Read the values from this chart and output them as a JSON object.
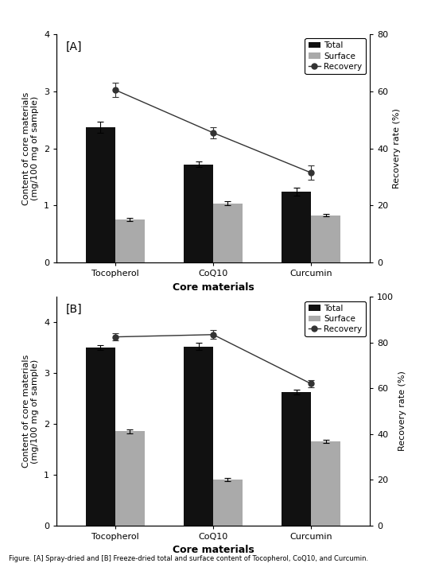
{
  "panel_A": {
    "label": "[A]",
    "categories": [
      "Tocopherol",
      "CoQ10",
      "Curcumin"
    ],
    "total": [
      2.37,
      1.72,
      1.25
    ],
    "total_err": [
      0.1,
      0.05,
      0.07
    ],
    "surface": [
      0.76,
      1.04,
      0.83
    ],
    "surface_err": [
      0.03,
      0.04,
      0.02
    ],
    "recovery": [
      60.5,
      45.5,
      31.5
    ],
    "recovery_err": [
      2.5,
      2.0,
      2.5
    ],
    "ylim_left": [
      0,
      4
    ],
    "ylim_right": [
      0,
      80
    ],
    "yticks_left": [
      0,
      1,
      2,
      3,
      4
    ],
    "yticks_right": [
      0,
      20,
      40,
      60,
      80
    ]
  },
  "panel_B": {
    "label": "[B]",
    "categories": [
      "Tocopherol",
      "CoQ10",
      "Curcumin"
    ],
    "total": [
      3.5,
      3.52,
      2.63
    ],
    "total_err": [
      0.05,
      0.07,
      0.05
    ],
    "surface": [
      1.85,
      0.9,
      1.65
    ],
    "surface_err": [
      0.04,
      0.03,
      0.03
    ],
    "recovery": [
      82.5,
      83.5,
      62.0
    ],
    "recovery_err": [
      1.5,
      2.0,
      1.5
    ],
    "ylim_left": [
      0,
      4.5
    ],
    "ylim_right": [
      0,
      100
    ],
    "yticks_left": [
      0,
      1,
      2,
      3,
      4
    ],
    "yticks_right": [
      0,
      20,
      40,
      60,
      80,
      100
    ]
  },
  "bar_width": 0.3,
  "bar_color_total": "#111111",
  "bar_color_surface": "#aaaaaa",
  "line_color": "#333333",
  "marker_style": "o",
  "marker_size": 5,
  "xlabel": "Core materials",
  "ylabel_left": "Content of core materials\n(mg/100 mg of sample)",
  "ylabel_right": "Recovery rate (%)",
  "legend_labels": [
    "Total",
    "Surface",
    "Recovery"
  ],
  "caption": "Figure. [A] Spray-dried and [B] Freeze-dried total and surface content of Tocopherol, CoQ10, and Curcumin."
}
